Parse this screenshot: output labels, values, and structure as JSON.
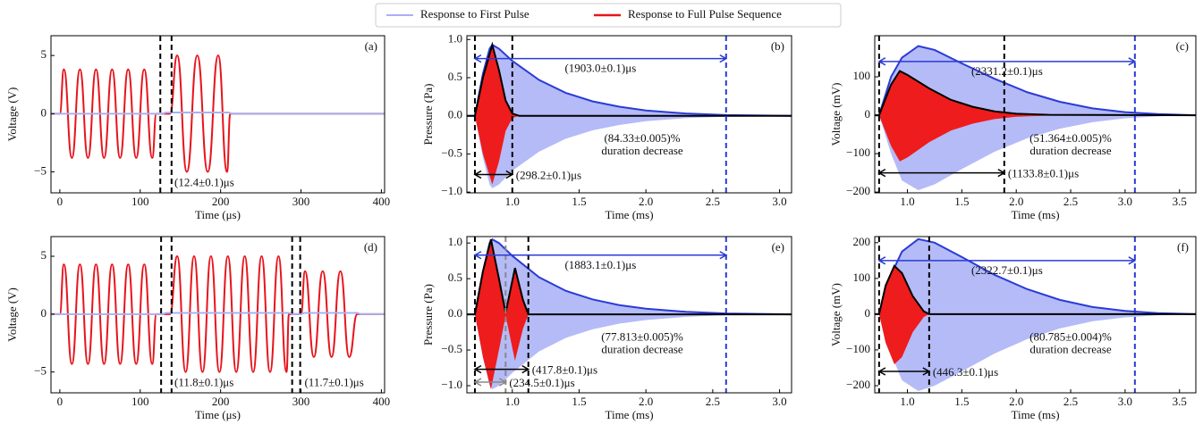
{
  "legend": [
    {
      "name": "Response to First Pulse",
      "color": "#a9b0f5"
    },
    {
      "name": "Response to Full Pulse Sequence",
      "color": "#e8141c"
    }
  ],
  "chart_data": [
    {
      "type": "line",
      "label": "(a)",
      "xlabel": "Time (μs)",
      "ylabel": "Voltage (V)",
      "xlim": [
        -11,
        404
      ],
      "ylim": [
        -6.8,
        6.7
      ],
      "xticks": [
        0,
        100,
        200,
        300,
        400
      ],
      "yticks": [
        {
          "value": -5,
          "label": "−5"
        },
        0,
        5
      ],
      "series": [
        {
          "color": "#e8141c",
          "smooth": true,
          "x": [
            -11,
            0,
            5,
            15,
            25,
            35,
            45,
            55,
            65,
            75,
            85,
            95,
            105,
            115,
            120,
            137,
            146,
            158,
            171,
            184,
            197,
            208,
            212,
            404
          ],
          "values": [
            0,
            0,
            3.8,
            -3.8,
            3.8,
            -3.8,
            3.8,
            -3.8,
            3.8,
            -3.8,
            3.8,
            -3.8,
            3.8,
            -3.8,
            0,
            0,
            5,
            -5,
            5,
            -5,
            5,
            -5,
            0,
            0
          ]
        },
        {
          "color": "#aab0f0",
          "x": [
            -11,
            128,
            132,
            210,
            214,
            404
          ],
          "values": [
            0,
            0,
            0.1,
            0.1,
            0,
            0
          ]
        }
      ],
      "vlines": [
        {
          "x": 125,
          "color": "#000000"
        },
        {
          "x": 139,
          "color": "#000000"
        }
      ],
      "arrows": [],
      "notes": [
        {
          "lines": [
            "(12.4±0.1)μs"
          ]
        }
      ]
    },
    {
      "type": "band",
      "label": "(b)",
      "xlabel": "Time (ms)",
      "ylabel": "Pressure (Pa)",
      "xlim": [
        0.66,
        3.09
      ],
      "ylim": [
        -1.01,
        1.05
      ],
      "xticks": [
        {
          "value": 1,
          "label": "1.0"
        },
        1.5,
        {
          "value": 2,
          "label": "2.0"
        },
        2.5,
        {
          "value": 3,
          "label": "3.0"
        }
      ],
      "yticks": [
        {
          "value": -1,
          "label": "−1.0"
        },
        {
          "value": -0.5,
          "label": "−0.5"
        },
        {
          "value": 0,
          "label": "0.0"
        },
        0.5,
        {
          "value": 1,
          "label": "1.0"
        }
      ],
      "series": [
        {
          "color": "#b4bbf7",
          "edge": "#2b3bd6",
          "x": [
            0.66,
            0.72,
            0.78,
            0.83,
            0.85,
            0.9,
            1.0,
            1.2,
            1.4,
            1.6,
            1.8,
            2.0,
            2.3,
            2.6,
            3.09
          ],
          "values": [
            0,
            0,
            0.55,
            0.88,
            0.93,
            0.88,
            0.72,
            0.47,
            0.3,
            0.19,
            0.12,
            0.07,
            0.03,
            0.01,
            0
          ],
          "lower": [
            0,
            0,
            -0.55,
            -0.9,
            -0.95,
            -0.9,
            -0.72,
            -0.47,
            -0.3,
            -0.19,
            -0.12,
            -0.07,
            -0.03,
            -0.01,
            0
          ]
        },
        {
          "color": "#ee1c1c",
          "edge": "#000000",
          "x": [
            0.66,
            0.72,
            0.78,
            0.85,
            0.9,
            0.95,
            1.0,
            1.05,
            3.09
          ],
          "values": [
            0,
            0,
            0.5,
            0.93,
            0.6,
            0.2,
            0.03,
            0,
            0
          ],
          "lower": [
            0,
            0,
            -0.5,
            -0.9,
            -0.6,
            -0.2,
            -0.03,
            0,
            0
          ]
        }
      ],
      "vlines": [
        {
          "x": 0.72,
          "color": "#000000"
        },
        {
          "x": 1.0,
          "color": "#000000"
        },
        {
          "x": 2.6,
          "color": "#2b3bd6"
        }
      ],
      "arrows": [
        {
          "x": [
            0.72,
            2.6
          ],
          "y": 0.75,
          "color": "#2b3bd6",
          "text": "(1903.0±0.1)μs"
        },
        {
          "x": [
            0.72,
            1.0
          ],
          "y": -0.77,
          "color": "#000000",
          "text": "(298.2±0.1)μs"
        }
      ],
      "notes": [
        {
          "lines": [
            "(84.33±0.005)%",
            "duration decrease"
          ]
        }
      ]
    },
    {
      "type": "band",
      "label": "(c)",
      "xlabel": "Time (ms)",
      "ylabel": "Voltage (mV)",
      "xlim": [
        0.7,
        3.65
      ],
      "ylim": [
        -202,
        207
      ],
      "xticks": [
        {
          "value": 1,
          "label": "1.0"
        },
        1.5,
        {
          "value": 2,
          "label": "2.0"
        },
        2.5,
        {
          "value": 3,
          "label": "3.0"
        },
        3.5
      ],
      "yticks": [
        {
          "value": -200,
          "label": "−200"
        },
        {
          "value": -100,
          "label": "−100"
        },
        0,
        100
      ],
      "series": [
        {
          "color": "#b4bbf7",
          "edge": "#2b3bd6",
          "x": [
            0.7,
            0.74,
            0.85,
            0.95,
            1.1,
            1.25,
            1.5,
            1.8,
            2.1,
            2.4,
            2.7,
            3.0,
            3.3,
            3.65
          ],
          "values": [
            0,
            0,
            100,
            150,
            180,
            170,
            135,
            95,
            60,
            35,
            18,
            8,
            3,
            0
          ],
          "lower": [
            0,
            0,
            -100,
            -170,
            -195,
            -180,
            -140,
            -95,
            -60,
            -35,
            -18,
            -8,
            -3,
            0
          ]
        },
        {
          "color": "#ee1c1c",
          "edge": "#000000",
          "x": [
            0.7,
            0.74,
            0.85,
            0.93,
            1.0,
            1.2,
            1.4,
            1.6,
            1.8,
            2.0,
            2.3,
            3.65
          ],
          "values": [
            0,
            0,
            80,
            115,
            105,
            70,
            40,
            22,
            10,
            4,
            1,
            0
          ],
          "lower": [
            0,
            0,
            -80,
            -120,
            -110,
            -70,
            -40,
            -22,
            -10,
            -4,
            -1,
            0
          ]
        }
      ],
      "vlines": [
        {
          "x": 0.74,
          "color": "#000000"
        },
        {
          "x": 1.89,
          "color": "#000000"
        },
        {
          "x": 3.09,
          "color": "#2b3bd6"
        }
      ],
      "arrows": [
        {
          "x": [
            0.74,
            3.09
          ],
          "y": 140,
          "color": "#2b3bd6",
          "text": "(2331.2±0.1)μs"
        },
        {
          "x": [
            0.74,
            1.89
          ],
          "y": -150,
          "color": "#000000",
          "text": "(1133.8±0.1)μs"
        }
      ],
      "notes": [
        {
          "lines": [
            "(51.364±0.005)%",
            "duration decrease"
          ]
        }
      ]
    },
    {
      "type": "line",
      "label": "(d)",
      "xlabel": "Time (μs)",
      "ylabel": "Voltage (V)",
      "xlim": [
        -11,
        404
      ],
      "ylim": [
        -6.8,
        6.7
      ],
      "xticks": [
        0,
        100,
        200,
        300,
        400
      ],
      "yticks": [
        {
          "value": -5,
          "label": "−5"
        },
        0,
        5
      ],
      "series": [
        {
          "color": "#e8141c",
          "smooth": true,
          "x": [
            -11,
            0,
            5,
            15,
            25,
            35,
            45,
            55,
            65,
            75,
            85,
            95,
            105,
            115,
            120,
            137,
            146,
            156.5,
            167,
            177.5,
            188,
            198.5,
            209,
            219.5,
            230,
            240.5,
            251,
            261.5,
            272,
            282,
            285,
            300,
            305,
            316,
            327,
            338,
            349,
            360,
            370,
            404
          ],
          "values": [
            0,
            0,
            4.3,
            -4.3,
            4.3,
            -4.3,
            4.3,
            -4.3,
            4.3,
            -4.3,
            4.3,
            -4.3,
            4.3,
            -4.3,
            0,
            0,
            5,
            -5,
            5,
            -5,
            5,
            -5,
            5,
            -5,
            5,
            -5,
            5,
            -5,
            5,
            -5,
            0,
            0,
            3.7,
            -3.7,
            3.7,
            -3.7,
            3.7,
            -3.7,
            0,
            0
          ]
        },
        {
          "color": "#aab0f0",
          "x": [
            -11,
            128,
            132,
            285,
            290,
            300,
            304,
            370,
            374,
            404
          ],
          "values": [
            0,
            0,
            0.1,
            0.1,
            0,
            0,
            0.1,
            0.1,
            0,
            0
          ]
        }
      ],
      "vlines": [
        {
          "x": 126,
          "color": "#000000"
        },
        {
          "x": 139,
          "color": "#000000"
        },
        {
          "x": 289,
          "color": "#000000"
        },
        {
          "x": 299,
          "color": "#000000"
        }
      ],
      "arrows": [],
      "notes": [
        {
          "lines": [
            "(11.8±0.1)μs"
          ]
        },
        {
          "lines": [
            "(11.7±0.1)μs"
          ]
        }
      ]
    },
    {
      "type": "band",
      "label": "(e)",
      "xlabel": "Time (ms)",
      "ylabel": "Pressure (Pa)",
      "xlim": [
        0.66,
        3.09
      ],
      "ylim": [
        -1.1,
        1.09
      ],
      "xticks": [
        {
          "value": 1,
          "label": "1.0"
        },
        1.5,
        {
          "value": 2,
          "label": "2.0"
        },
        2.5,
        {
          "value": 3,
          "label": "3.0"
        }
      ],
      "yticks": [
        {
          "value": -1,
          "label": "−1.0"
        },
        {
          "value": -0.5,
          "label": "−0.5"
        },
        {
          "value": 0,
          "label": "0.0"
        },
        0.5,
        {
          "value": 1,
          "label": "1.0"
        }
      ],
      "series": [
        {
          "color": "#b4bbf7",
          "edge": "#2b3bd6",
          "x": [
            0.66,
            0.72,
            0.78,
            0.83,
            0.85,
            0.9,
            1.0,
            1.2,
            1.4,
            1.6,
            1.8,
            2.0,
            2.3,
            2.6,
            3.09
          ],
          "values": [
            0,
            0,
            0.6,
            1.0,
            1.05,
            1.0,
            0.82,
            0.52,
            0.33,
            0.21,
            0.13,
            0.08,
            0.035,
            0.012,
            0
          ],
          "lower": [
            0,
            0,
            -0.6,
            -1.0,
            -1.05,
            -1.0,
            -0.82,
            -0.52,
            -0.33,
            -0.21,
            -0.13,
            -0.08,
            -0.035,
            -0.012,
            0
          ]
        },
        {
          "color": "#ee1c1c",
          "edge": "#000000",
          "x": [
            0.66,
            0.72,
            0.78,
            0.84,
            0.9,
            0.95,
            1.02,
            1.08,
            1.12,
            3.09
          ],
          "values": [
            0,
            0,
            0.6,
            1.05,
            0.5,
            0.02,
            0.65,
            0.2,
            0,
            0
          ],
          "lower": [
            0,
            0,
            -0.6,
            -1.05,
            -0.5,
            -0.02,
            -0.65,
            -0.2,
            0,
            0
          ]
        }
      ],
      "vlines": [
        {
          "x": 0.72,
          "color": "#000000"
        },
        {
          "x": 1.12,
          "color": "#000000"
        },
        {
          "x": 0.95,
          "color": "#888888"
        },
        {
          "x": 2.6,
          "color": "#2b3bd6"
        }
      ],
      "arrows": [
        {
          "x": [
            0.72,
            2.6
          ],
          "y": 0.83,
          "color": "#2b3bd6",
          "text": "(1883.1±0.1)μs"
        },
        {
          "x": [
            0.72,
            1.12
          ],
          "y": -0.77,
          "color": "#000000",
          "text": "(417.8±0.1)μs"
        },
        {
          "x": [
            0.72,
            0.95
          ],
          "y": -0.95,
          "color": "#888888",
          "text": "(234.5±0.1)μs"
        }
      ],
      "notes": [
        {
          "lines": [
            "(77.813±0.005)%",
            "duration decrease"
          ]
        }
      ]
    },
    {
      "type": "band",
      "label": "(f)",
      "xlabel": "Time (ms)",
      "ylabel": "Voltage (mV)",
      "xlim": [
        0.7,
        3.65
      ],
      "ylim": [
        -220,
        217
      ],
      "xticks": [
        {
          "value": 1,
          "label": "1.0"
        },
        1.5,
        {
          "value": 2,
          "label": "2.0"
        },
        2.5,
        {
          "value": 3,
          "label": "3.0"
        },
        3.5
      ],
      "yticks": [
        {
          "value": -200,
          "label": "−200"
        },
        {
          "value": -100,
          "label": "−100"
        },
        0,
        100,
        200
      ],
      "series": [
        {
          "color": "#b4bbf7",
          "edge": "#2b3bd6",
          "x": [
            0.7,
            0.74,
            0.85,
            0.95,
            1.1,
            1.25,
            1.5,
            1.8,
            2.1,
            2.4,
            2.7,
            3.0,
            3.3,
            3.65
          ],
          "values": [
            0,
            0,
            110,
            175,
            210,
            200,
            160,
            110,
            70,
            40,
            20,
            9,
            3,
            0
          ],
          "lower": [
            0,
            0,
            -110,
            -185,
            -215,
            -200,
            -160,
            -110,
            -70,
            -40,
            -20,
            -9,
            -3,
            0
          ]
        },
        {
          "color": "#ee1c1c",
          "edge": "#000000",
          "x": [
            0.7,
            0.74,
            0.8,
            0.88,
            0.95,
            1.05,
            1.15,
            1.2,
            3.65
          ],
          "values": [
            0,
            0,
            80,
            135,
            115,
            50,
            8,
            0,
            0
          ],
          "lower": [
            0,
            0,
            -80,
            -140,
            -120,
            -50,
            -8,
            0,
            0
          ]
        }
      ],
      "vlines": [
        {
          "x": 0.74,
          "color": "#000000"
        },
        {
          "x": 1.2,
          "color": "#000000"
        },
        {
          "x": 3.09,
          "color": "#2b3bd6"
        }
      ],
      "arrows": [
        {
          "x": [
            0.74,
            3.09
          ],
          "y": 150,
          "color": "#2b3bd6",
          "text": "(2322.7±0.1)μs"
        },
        {
          "x": [
            0.74,
            1.2
          ],
          "y": -160,
          "color": "#000000",
          "text": "(446.3±0.1)μs"
        }
      ],
      "notes": [
        {
          "lines": [
            "(80.785±0.004)%",
            "duration decrease"
          ]
        }
      ]
    }
  ]
}
